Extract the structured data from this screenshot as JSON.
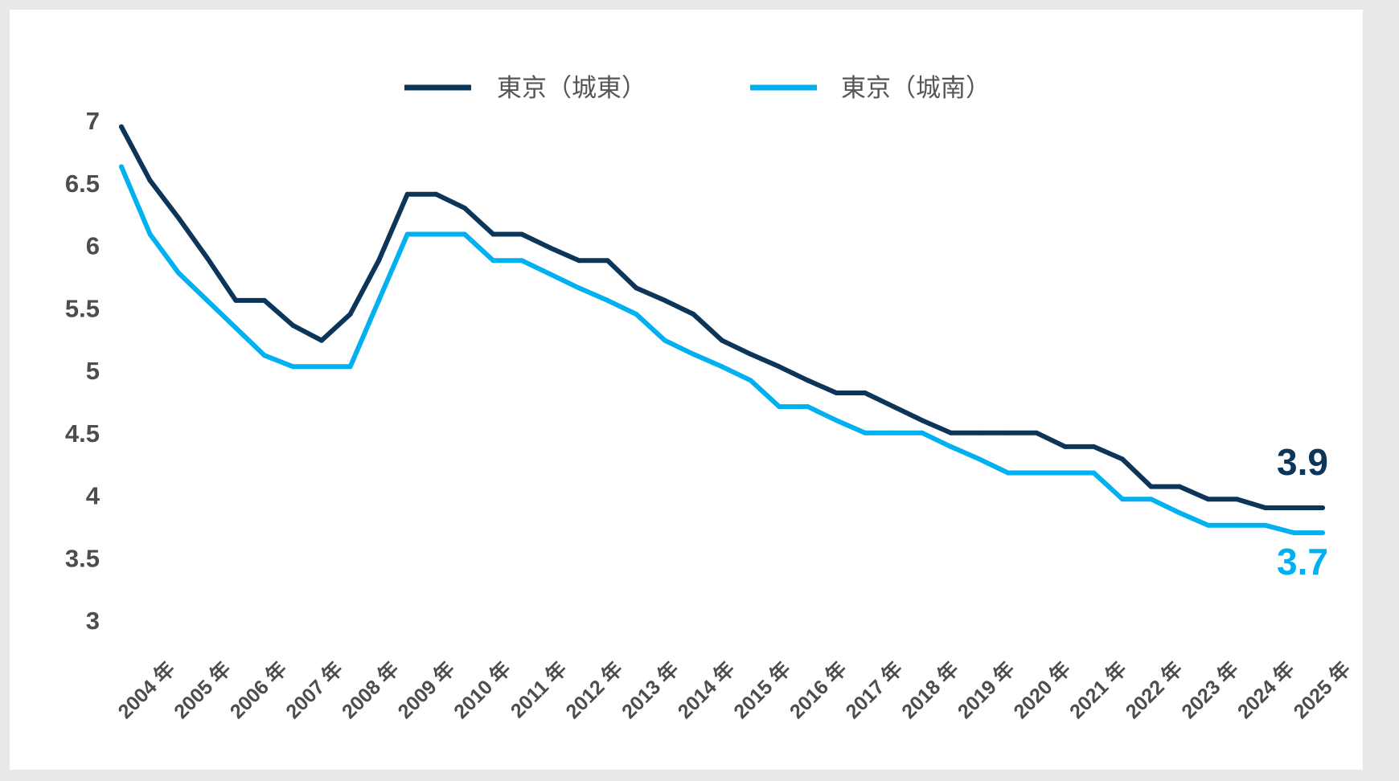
{
  "chart_data": {
    "type": "line",
    "title": "",
    "xlabel": "",
    "ylabel": "",
    "ylim": [
      3,
      7
    ],
    "yticks": [
      "7",
      "6.5",
      "6",
      "5.5",
      "5",
      "4.5",
      "4",
      "3.5",
      "3"
    ],
    "xticks": [
      "2004 年",
      "2005 年",
      "2006 年",
      "2007 年",
      "2008 年",
      "2009 年",
      "2010 年",
      "2011 年",
      "2012 年",
      "2013 年",
      "2014 年",
      "2015 年",
      "2016 年",
      "2017 年",
      "2018 年",
      "2019 年",
      "2020 年",
      "2021 年",
      "2022 年",
      "2023 年",
      "2024 年",
      "2025 年"
    ],
    "x_period": "half-year",
    "grid": false,
    "legend_position": "top",
    "series": [
      {
        "name": "東京（城東）",
        "color": "#0b3559",
        "values": [
          6.95,
          6.52,
          6.22,
          5.9,
          5.56,
          5.56,
          5.36,
          5.24,
          5.45,
          5.88,
          6.41,
          6.41,
          6.3,
          6.09,
          6.09,
          5.98,
          5.88,
          5.88,
          5.66,
          5.56,
          5.45,
          5.24,
          5.13,
          5.03,
          4.92,
          4.82,
          4.82,
          4.71,
          4.6,
          4.5,
          4.5,
          4.5,
          4.5,
          4.39,
          4.39,
          4.29,
          4.07,
          4.07,
          3.97,
          3.97,
          3.9,
          3.9,
          3.9
        ],
        "end_label": "3.9"
      },
      {
        "name": "東京（城南）",
        "color": "#00b0f0",
        "values": [
          6.63,
          6.09,
          5.78,
          5.56,
          5.34,
          5.12,
          5.03,
          5.03,
          5.03,
          5.56,
          6.09,
          6.09,
          6.09,
          5.88,
          5.88,
          5.77,
          5.66,
          5.56,
          5.45,
          5.24,
          5.13,
          5.03,
          4.92,
          4.71,
          4.71,
          4.6,
          4.5,
          4.5,
          4.5,
          4.39,
          4.29,
          4.18,
          4.18,
          4.18,
          4.18,
          3.97,
          3.97,
          3.86,
          3.76,
          3.76,
          3.76,
          3.7,
          3.7
        ],
        "end_label": "3.7"
      }
    ]
  }
}
